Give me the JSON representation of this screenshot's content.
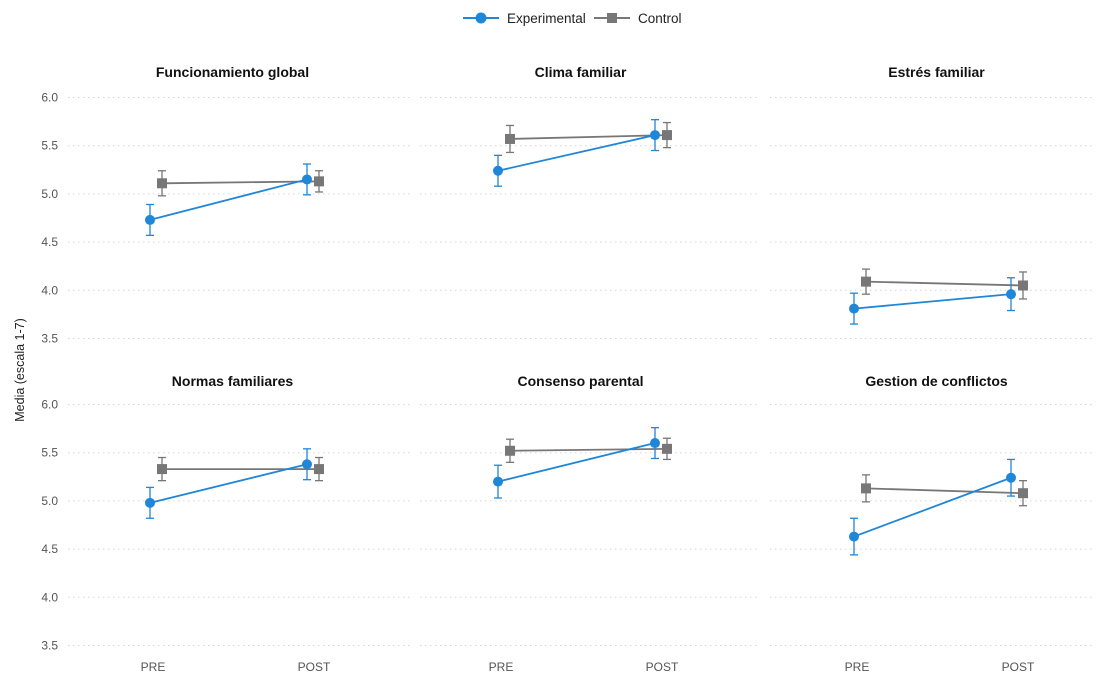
{
  "chart_data": {
    "type": "line",
    "ylabel": "Media (escala 1-7)",
    "xlabel": "",
    "categories": [
      "PRE",
      "POST"
    ],
    "ylim": [
      3.4,
      6.05
    ],
    "yticks": [
      3.5,
      4.0,
      4.5,
      5.0,
      5.5,
      6.0
    ],
    "ytick_labels": [
      "3.5",
      "4.0",
      "4.5",
      "5.0",
      "5.5",
      "6.0"
    ],
    "grid": true,
    "legend": {
      "placement": "top-center",
      "entries": [
        {
          "name": "Experimental",
          "color": "#1f86d8",
          "marker": "circle"
        },
        {
          "name": "Control",
          "color": "#777777",
          "marker": "square"
        }
      ]
    },
    "panels": [
      {
        "title": "Funcionamiento global",
        "series": [
          {
            "name": "Experimental",
            "values": [
              4.73,
              5.15
            ],
            "err": [
              0.16,
              0.16
            ]
          },
          {
            "name": "Control",
            "values": [
              5.11,
              5.13
            ],
            "err": [
              0.13,
              0.11
            ]
          }
        ]
      },
      {
        "title": "Clima familiar",
        "series": [
          {
            "name": "Experimental",
            "values": [
              5.24,
              5.61
            ],
            "err": [
              0.16,
              0.16
            ]
          },
          {
            "name": "Control",
            "values": [
              5.57,
              5.61
            ],
            "err": [
              0.14,
              0.13
            ]
          }
        ]
      },
      {
        "title": "Estrés familiar",
        "series": [
          {
            "name": "Experimental",
            "values": [
              3.81,
              3.96
            ],
            "err": [
              0.16,
              0.17
            ]
          },
          {
            "name": "Control",
            "values": [
              4.09,
              4.05
            ],
            "err": [
              0.13,
              0.14
            ]
          }
        ]
      },
      {
        "title": "Normas familiares",
        "series": [
          {
            "name": "Experimental",
            "values": [
              4.98,
              5.38
            ],
            "err": [
              0.16,
              0.16
            ]
          },
          {
            "name": "Control",
            "values": [
              5.33,
              5.33
            ],
            "err": [
              0.12,
              0.12
            ]
          }
        ]
      },
      {
        "title": "Consenso parental",
        "series": [
          {
            "name": "Experimental",
            "values": [
              5.2,
              5.6
            ],
            "err": [
              0.17,
              0.16
            ]
          },
          {
            "name": "Control",
            "values": [
              5.52,
              5.54
            ],
            "err": [
              0.12,
              0.11
            ]
          }
        ]
      },
      {
        "title": "Gestion de conflictos",
        "series": [
          {
            "name": "Experimental",
            "values": [
              4.63,
              5.24
            ],
            "err": [
              0.19,
              0.19
            ]
          },
          {
            "name": "Control",
            "values": [
              5.13,
              5.08
            ],
            "err": [
              0.14,
              0.13
            ]
          }
        ]
      }
    ]
  }
}
